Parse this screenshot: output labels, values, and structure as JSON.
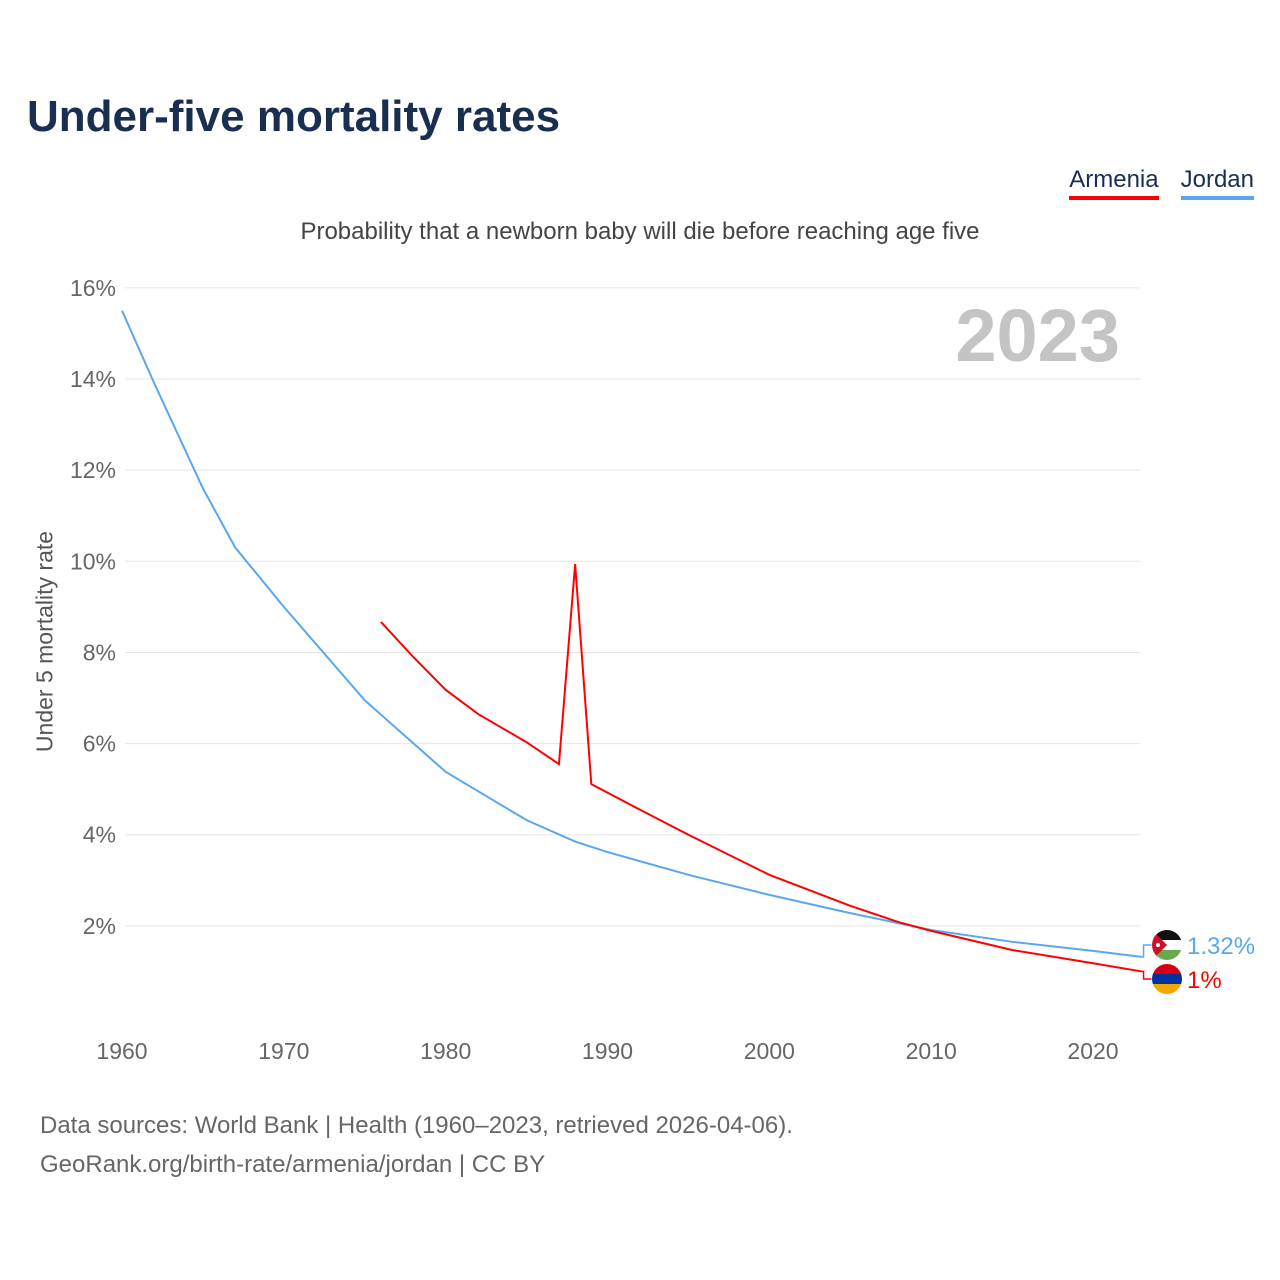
{
  "title": "Under-five mortality rates",
  "subtitle": "Probability that a newborn baby will die before reaching age five",
  "legend": [
    {
      "label": "Armenia",
      "color": "#ff0000"
    },
    {
      "label": "Jordan",
      "color": "#5aa7f0"
    }
  ],
  "footer": {
    "line1": "Data sources: World Bank | Health (1960–2023, retrieved 2026-04-06).",
    "line2": "GeoRank.org/birth-rate/armenia/jordan | CC BY"
  },
  "chart_data": {
    "type": "line",
    "title": "Under-five mortality rates",
    "ylabel": "Under 5 mortality rate",
    "xlabel": "",
    "year_label": "2023",
    "xlim": [
      1960,
      2023
    ],
    "ylim": [
      0,
      16
    ],
    "x_ticks": [
      "1960",
      "1970",
      "1980",
      "1990",
      "2000",
      "2010",
      "2020"
    ],
    "y_ticks": [
      "2%",
      "4%",
      "6%",
      "8%",
      "10%",
      "12%",
      "14%",
      "16%"
    ],
    "grid": true,
    "legend_position": "top-right",
    "series": [
      {
        "name": "Jordan",
        "color": "#5aa7f0",
        "end_label": "1.32%",
        "x": [
          1960,
          1962,
          1965,
          1967,
          1970,
          1975,
          1980,
          1985,
          1988,
          1990,
          1995,
          2000,
          2005,
          2010,
          2015,
          2020,
          2023
        ],
        "y": [
          15.5,
          13.9,
          11.6,
          10.3,
          9.0,
          6.95,
          5.38,
          4.32,
          3.85,
          3.62,
          3.12,
          2.68,
          2.28,
          1.91,
          1.65,
          1.45,
          1.32
        ]
      },
      {
        "name": "Armenia",
        "color": "#ff0000",
        "end_label": "1%",
        "x": [
          1976,
          1978,
          1980,
          1982,
          1985,
          1987,
          1988,
          1989,
          1992,
          1995,
          2000,
          2005,
          2008,
          2010,
          2015,
          2020,
          2023
        ],
        "y": [
          8.67,
          7.9,
          7.18,
          6.65,
          6.03,
          5.55,
          9.94,
          5.11,
          4.55,
          4.0,
          3.12,
          2.44,
          2.08,
          1.89,
          1.47,
          1.18,
          1.0
        ]
      }
    ]
  }
}
